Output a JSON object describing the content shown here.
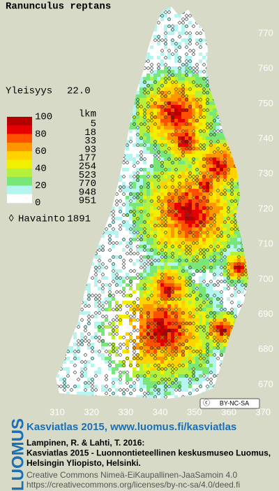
{
  "title": "Ranunculus reptans",
  "frequency": {
    "label": "Yleisyys",
    "value": "22.0"
  },
  "legend": {
    "scale": [
      100,
      80,
      60,
      40,
      20,
      0
    ],
    "count_header": "lkm",
    "counts": [
      5,
      18,
      33,
      93,
      177,
      254,
      523,
      770,
      948,
      951
    ],
    "colors": [
      "#b40000",
      "#e60000",
      "#ff5000",
      "#ff9600",
      "#ffd200",
      "#f0f000",
      "#b4f03c",
      "#78e678",
      "#b4f5f0",
      "#ffffff"
    ]
  },
  "observations": {
    "label": "Havainto",
    "value": 1891
  },
  "grid": {
    "northing": [
      770,
      760,
      750,
      740,
      730,
      720,
      710,
      700,
      690,
      680,
      670
    ],
    "easting": [
      310,
      320,
      330,
      340,
      350,
      360,
      370
    ]
  },
  "license_badge": "BY-NC-SA",
  "footer": {
    "brand": "LUOMUS",
    "headline": "Kasviatlas 2015, www.luomus.fi/kasviatlas",
    "citation": [
      "Lampinen, R. & Lahti, T. 2016:",
      "Kasviatlas 2015 - Luonnontieteellinen keskusmuseo Luomus,",
      "Helsingin Yliopisto, Helsinki."
    ],
    "license": [
      "Creative Commons Nimeä-EiKaupallinen-JaaSamoin 4.0",
      "https://creativecommons.org/licenses/by-nc-sa/4.0/deed.fi"
    ]
  }
}
